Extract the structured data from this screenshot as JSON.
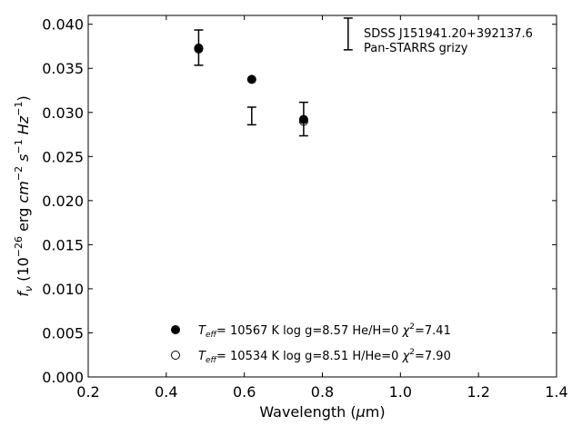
{
  "chart_data": {
    "type": "scatter",
    "xlim": [
      0.2,
      1.4
    ],
    "ylim": [
      0.0,
      0.041
    ],
    "xticks": [
      0.2,
      0.4,
      0.6,
      0.8,
      1.0,
      1.2,
      1.4
    ],
    "yticks": [
      0.0,
      0.005,
      0.01,
      0.015,
      0.02,
      0.025,
      0.03,
      0.035,
      0.04
    ],
    "xtick_labels": [
      "0.2",
      "0.4",
      "0.6",
      "0.8",
      "1.0",
      "1.2",
      "1.4"
    ],
    "ytick_labels": [
      "0.000",
      "0.005",
      "0.010",
      "0.015",
      "0.020",
      "0.025",
      "0.030",
      "0.035",
      "0.040"
    ],
    "grid": false,
    "xlabel": {
      "main": "Wavelength (",
      "greek": "μ",
      "unit": "m)"
    },
    "ylabel": {
      "f": "f",
      "nu": "ν",
      "open": " (10",
      "exp26": "−26",
      "erg": " erg ",
      "cm": "cm",
      "exp2": "−2",
      "s": " s",
      "exp1a": "−1",
      "hz": " Hz",
      "exp1b": "−1",
      "close": ")"
    },
    "annotation": {
      "lines": [
        "SDSS J151941.20+392137.6",
        "Pan-STARRS grizy"
      ],
      "errorbar_x": 0.866,
      "errorbar_y": [
        0.0371,
        0.0407
      ]
    },
    "observed": {
      "x": [
        0.483,
        0.619,
        0.752
      ],
      "y": [
        0.03735,
        0.0296,
        0.02925
      ],
      "yerr": [
        0.002,
        0.001,
        0.0019
      ]
    },
    "series": [
      {
        "marker": "filled",
        "x": [
          0.483,
          0.619,
          0.752
        ],
        "y": [
          0.0372,
          0.03375,
          0.0292
        ],
        "legend": {
          "t": "T",
          "sub": "eff",
          "rest": "= 10567 K  log g=8.57  He/H=0  ",
          "chi": "χ",
          "sup": "2",
          "val": "=7.41"
        }
      },
      {
        "marker": "open",
        "x": [
          0.483,
          0.752
        ],
        "y": [
          0.0373,
          0.029
        ],
        "legend": {
          "t": "T",
          "sub": "eff",
          "rest": "= 10534 K  log g=8.51  H/He=0  ",
          "chi": "χ",
          "sup": "2",
          "val": "=7.90"
        }
      }
    ],
    "legend_position": "bottom-center"
  }
}
